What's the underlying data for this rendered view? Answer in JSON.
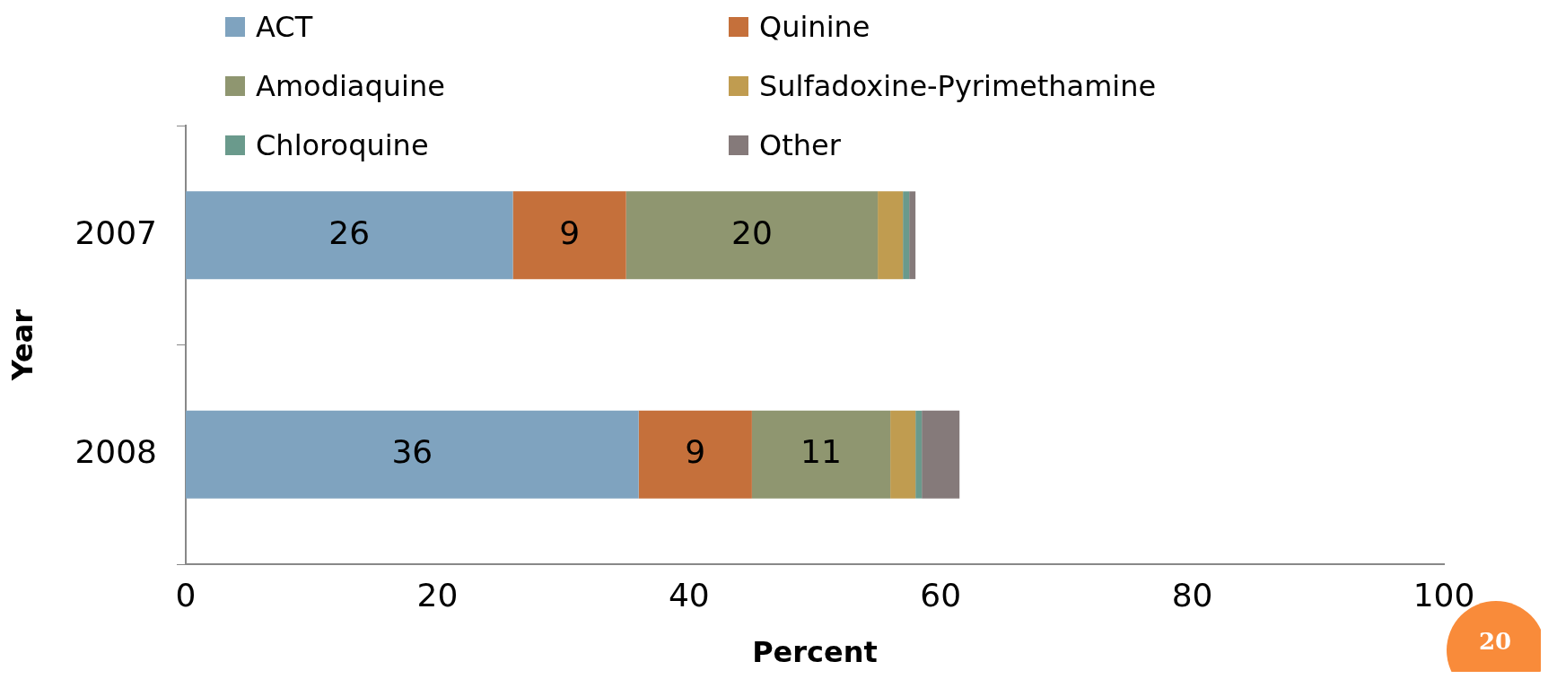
{
  "chart_data": {
    "type": "bar",
    "orientation": "horizontal",
    "stacked": true,
    "xlabel": "Percent",
    "ylabel": "Year",
    "categories": [
      "2007",
      "2008"
    ],
    "series": [
      {
        "name": "ACT",
        "color": "#7fa3bf",
        "values": [
          26,
          36
        ],
        "value_labels": [
          "26",
          "36"
        ]
      },
      {
        "name": "Quinine",
        "color": "#c5703b",
        "values": [
          9,
          9
        ],
        "value_labels": [
          "9",
          "9"
        ]
      },
      {
        "name": "Amodiaquine",
        "color": "#8f9670",
        "values": [
          20,
          11
        ],
        "value_labels": [
          "20",
          "11"
        ]
      },
      {
        "name": "Sulfadoxine-Pyrimethamine",
        "color": "#c09c50",
        "values": [
          2,
          2
        ]
      },
      {
        "name": "Chloroquine",
        "color": "#6a9a8c",
        "values": [
          0.5,
          0.5
        ]
      },
      {
        "name": "Other",
        "color": "#857a7a",
        "values": [
          0.5,
          3
        ]
      }
    ],
    "xlim": [
      0,
      100
    ],
    "xticks": [
      0,
      20,
      40,
      60,
      80,
      100
    ],
    "grid": false,
    "legend": "top",
    "annotations": [
      "20"
    ]
  }
}
